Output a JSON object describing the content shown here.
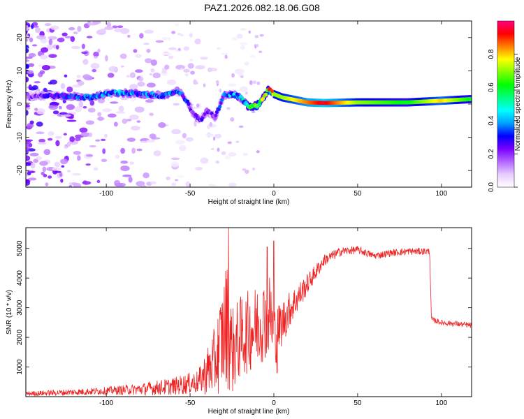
{
  "title": "PAZ1.2026.082.18.06.G08",
  "chart_data": [
    {
      "type": "heatmap",
      "name": "spectrogram",
      "xlabel": "Height of straight line (km)",
      "ylabel": "Frequency (Hz)",
      "xlim": [
        -148,
        118
      ],
      "ylim": [
        -25,
        25
      ],
      "xticks": [
        -100,
        -50,
        0,
        50,
        100
      ],
      "yticks": [
        -20,
        -10,
        0,
        10,
        20
      ],
      "colorbar": {
        "label": "Normalized spectral amplitude",
        "range": [
          0,
          1
        ],
        "ticks": [
          0.0,
          0.2,
          0.4,
          0.6,
          0.8
        ],
        "colors": [
          "#ffffff",
          "#e6ccff",
          "#b366ff",
          "#7a00ff",
          "#0000ff",
          "#00a0ff",
          "#00ffff",
          "#00ff80",
          "#00ff00",
          "#80ff00",
          "#ffff00",
          "#ff8000",
          "#ff0000",
          "#ff0080"
        ]
      },
      "ridge": {
        "x": [
          -148,
          -130,
          -110,
          -95,
          -80,
          -65,
          -57,
          -52,
          -48,
          -44,
          -40,
          -35,
          -30,
          -25,
          -20,
          -15,
          -10,
          -5,
          -3,
          0,
          5,
          10,
          20,
          30,
          50,
          80,
          100,
          118
        ],
        "freq": [
          2.5,
          2.5,
          2.0,
          3.5,
          3.0,
          2.5,
          4.0,
          1.0,
          -3.0,
          -5.0,
          -2.0,
          -4.0,
          2.5,
          3.0,
          2.0,
          -1.0,
          -0.5,
          3.0,
          4.5,
          3.0,
          2.0,
          1.5,
          0.5,
          0.3,
          0.5,
          0.5,
          1.0,
          1.5
        ],
        "amplitude": [
          0.15,
          0.25,
          0.3,
          0.35,
          0.3,
          0.32,
          0.3,
          0.25,
          0.2,
          0.22,
          0.2,
          0.22,
          0.3,
          0.35,
          0.4,
          0.5,
          0.6,
          0.6,
          0.65,
          0.7,
          0.7,
          0.75,
          0.85,
          0.95,
          0.7,
          0.6,
          0.8,
          0.6
        ]
      }
    },
    {
      "type": "line",
      "name": "snr",
      "xlabel": "Height of straight line (km)",
      "ylabel": "SNR (10 * v/v)",
      "xlim": [
        -148,
        118
      ],
      "ylim": [
        0,
        5700
      ],
      "xticks": [
        -100,
        -50,
        0,
        50,
        100
      ],
      "yticks": [
        1000,
        2000,
        3000,
        4000,
        5000
      ],
      "color": "#ee2222",
      "envelope": {
        "x": [
          -148,
          -120,
          -100,
          -80,
          -60,
          -45,
          -35,
          -28,
          -25,
          -20,
          -10,
          -2,
          0,
          2,
          10,
          20,
          30,
          40,
          50,
          60,
          70,
          80,
          93,
          94,
          100,
          110,
          118
        ],
        "mean": [
          100,
          150,
          200,
          250,
          350,
          500,
          1200,
          2500,
          1500,
          2000,
          2400,
          2800,
          2000,
          2200,
          3000,
          3800,
          4600,
          4900,
          4950,
          4750,
          4850,
          4900,
          4900,
          2600,
          2500,
          2450,
          2400
        ],
        "spread": [
          80,
          110,
          130,
          200,
          300,
          400,
          1200,
          2200,
          1500,
          1400,
          1400,
          1400,
          1200,
          900,
          600,
          350,
          200,
          150,
          130,
          120,
          120,
          120,
          120,
          100,
          90,
          90,
          100
        ]
      },
      "spikes": [
        {
          "x": -27,
          "y": 5700
        },
        {
          "x": -25,
          "y": 1500
        },
        {
          "x": 0,
          "y": 5250
        },
        {
          "x": -4,
          "y": 5050
        },
        {
          "x": 2,
          "y": 800
        }
      ]
    }
  ]
}
